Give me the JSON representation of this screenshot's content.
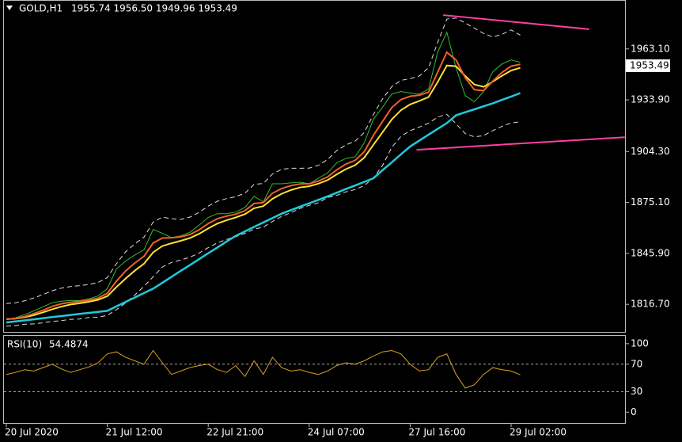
{
  "chart_data": [
    {
      "type": "line",
      "title": "GOLD,H1",
      "subtitle": "1955.74 1956.50 1949.96 1953.49",
      "categories": [
        "20 Jul 2020",
        null,
        null,
        null,
        null,
        null,
        null,
        null,
        null,
        null,
        null,
        "21 Jul 12:00",
        null,
        null,
        null,
        null,
        null,
        null,
        null,
        null,
        null,
        null,
        "22 Jul 21:00",
        null,
        null,
        null,
        null,
        null,
        null,
        null,
        null,
        null,
        null,
        "24 Jul 07:00",
        null,
        null,
        null,
        null,
        null,
        null,
        null,
        null,
        null,
        null,
        "27 Jul 16:00",
        null,
        null,
        null,
        null,
        null,
        null,
        null,
        null,
        null,
        null,
        "29 Jul 02:00",
        null
      ],
      "series": [
        {
          "color": "#2fbf2f",
          "width": 1,
          "values": [
            1808.2,
            1809.0,
            1810.8,
            1813.0,
            1815.3,
            1817.6,
            1818.5,
            1818.9,
            1818.9,
            1819.8,
            1821.5,
            1825.7,
            1837.0,
            1841.5,
            1845.0,
            1848.0,
            1859.6,
            1857.4,
            1855.0,
            1856.0,
            1858.0,
            1862.0,
            1866.5,
            1868.7,
            1868.7,
            1869.6,
            1872.3,
            1878.6,
            1875.4,
            1885.8,
            1885.8,
            1886.3,
            1886.7,
            1885.8,
            1889.0,
            1892.0,
            1897.9,
            1900.3,
            1901.2,
            1909.3,
            1922.9,
            1929.7,
            1937.3,
            1938.7,
            1937.8,
            1937.3,
            1940.0,
            1961.3,
            1972.6,
            1952.3,
            1936.4,
            1932.8,
            1938.7,
            1950.0,
            1954.5,
            1956.8,
            1955.4
          ]
        },
        {
          "color": "#dddddd",
          "width": 1,
          "dashed": true,
          "values": [
            1817.2,
            1817.6,
            1818.7,
            1820.4,
            1822.3,
            1824.5,
            1826.0,
            1826.9,
            1827.4,
            1828.1,
            1829.3,
            1832.0,
            1840.0,
            1846.8,
            1851.4,
            1855.2,
            1863.9,
            1866.7,
            1865.8,
            1865.4,
            1866.7,
            1869.4,
            1873.0,
            1875.8,
            1877.3,
            1878.4,
            1880.4,
            1885.5,
            1886.0,
            1891.4,
            1894.1,
            1894.7,
            1894.7,
            1894.8,
            1896.4,
            1899.7,
            1904.8,
            1908.1,
            1910.2,
            1915.2,
            1925.6,
            1934.6,
            1941.5,
            1945.1,
            1946.0,
            1947.6,
            1952.3,
            1966.8,
            1980.2,
            1980.8,
            1978.0,
            1975.0,
            1972.0,
            1970.0,
            1971.5,
            1974.0,
            1971.0
          ]
        },
        {
          "color": "#dddddd",
          "width": 1,
          "dashed": true,
          "values": [
            1804.2,
            1804.5,
            1805.3,
            1805.5,
            1806.1,
            1806.9,
            1807.4,
            1808.1,
            1808.3,
            1809.2,
            1809.3,
            1810.4,
            1813.6,
            1817.5,
            1822.0,
            1827.0,
            1832.5,
            1838.1,
            1840.7,
            1842.1,
            1843.7,
            1846.1,
            1849.2,
            1852.0,
            1853.9,
            1855.5,
            1857.4,
            1859.8,
            1861.0,
            1864.2,
            1867.1,
            1869.2,
            1871.7,
            1873.4,
            1874.9,
            1877.9,
            1879.2,
            1881.2,
            1882.5,
            1884.8,
            1889.2,
            1896.4,
            1906.7,
            1913.0,
            1916.3,
            1918.3,
            1920.5,
            1924.1,
            1925.6,
            1920.2,
            1914.6,
            1912.7,
            1913.4,
            1916.3,
            1918.7,
            1920.7,
            1921.3
          ]
        },
        {
          "color": "#22c8dc",
          "width": 2.5,
          "values": [
            1806.3,
            1806.9,
            1807.5,
            1808.1,
            1808.7,
            1809.4,
            1810.0,
            1810.6,
            1811.2,
            1811.8,
            1812.4,
            1813.0,
            1815.5,
            1818.1,
            1820.6,
            1823.2,
            1825.7,
            1829.1,
            1832.5,
            1835.9,
            1839.2,
            1842.6,
            1846.0,
            1849.3,
            1852.7,
            1856.0,
            1858.5,
            1861.1,
            1863.6,
            1866.2,
            1868.7,
            1870.7,
            1872.7,
            1874.6,
            1876.6,
            1878.6,
            1880.7,
            1882.8,
            1884.8,
            1886.9,
            1889.0,
            1893.6,
            1898.1,
            1902.7,
            1907.2,
            1910.6,
            1913.9,
            1917.3,
            1920.6,
            1925.1,
            1926.8,
            1928.5,
            1930.2,
            1931.9,
            1933.9,
            1935.8,
            1937.8
          ]
        },
        {
          "color": "#ffe030",
          "width": 2,
          "values": [
            1808.2,
            1808.5,
            1809.3,
            1810.5,
            1812.1,
            1813.9,
            1815.4,
            1816.6,
            1817.3,
            1818.2,
            1819.3,
            1821.4,
            1826.6,
            1831.5,
            1836.0,
            1840.0,
            1846.5,
            1850.1,
            1851.7,
            1853.1,
            1854.7,
            1857.1,
            1860.2,
            1863.0,
            1864.9,
            1866.5,
            1868.4,
            1871.8,
            1873.0,
            1877.2,
            1880.1,
            1882.2,
            1883.7,
            1884.4,
            1885.9,
            1887.9,
            1891.2,
            1894.2,
            1896.5,
            1900.8,
            1908.2,
            1915.4,
            1922.7,
            1928.0,
            1931.3,
            1933.3,
            1935.5,
            1944.1,
            1953.6,
            1953.2,
            1947.6,
            1942.7,
            1941.4,
            1944.3,
            1947.7,
            1950.7,
            1952.3
          ]
        },
        {
          "color": "#f0602a",
          "width": 2,
          "values": [
            1808.2,
            1808.6,
            1809.7,
            1811.4,
            1813.3,
            1815.5,
            1817.0,
            1817.9,
            1818.4,
            1819.1,
            1820.3,
            1823.0,
            1830.0,
            1835.8,
            1840.4,
            1844.2,
            1851.9,
            1854.7,
            1854.8,
            1855.4,
            1856.7,
            1859.4,
            1863.0,
            1865.8,
            1867.3,
            1868.4,
            1870.4,
            1874.5,
            1875.0,
            1880.4,
            1883.1,
            1884.7,
            1885.7,
            1885.8,
            1887.4,
            1889.7,
            1893.8,
            1897.1,
            1899.2,
            1904.2,
            1913.6,
            1921.6,
            1929.5,
            1934.1,
            1936.0,
            1936.6,
            1938.3,
            1949.8,
            1961.2,
            1956.8,
            1946.6,
            1939.7,
            1939.2,
            1944.6,
            1949.6,
            1953.2,
            1954.3
          ]
        }
      ],
      "trendlines": [
        {
          "color": "#ff3fa4",
          "x": [
            47.6,
            63.5
          ],
          "values": [
            1982.5,
            1974.4
          ]
        },
        {
          "color": "#ff3fa4",
          "x": [
            44.7,
            67.4
          ],
          "values": [
            1905.3,
            1912.5
          ]
        }
      ],
      "last_price": 1953.49,
      "ylim": [
        1800.9,
        1990.7
      ],
      "yticks": [
        {
          "value": 1963.1,
          "label": "1963.10"
        },
        {
          "value": 1933.9,
          "label": "1933.90"
        },
        {
          "value": 1904.3,
          "label": "1904.30"
        },
        {
          "value": 1875.1,
          "label": "1875.10"
        },
        {
          "value": 1845.9,
          "label": "1845.90"
        },
        {
          "value": 1816.7,
          "label": "1816.70"
        }
      ]
    },
    {
      "type": "line",
      "title": "RSI(10)",
      "current": 54.4874,
      "color": "#d9a020",
      "values": [
        55,
        58,
        62,
        60,
        65,
        70,
        63,
        58,
        62,
        66,
        72,
        85,
        88,
        80,
        75,
        70,
        90,
        72,
        55,
        60,
        65,
        68,
        70,
        62,
        58,
        68,
        52,
        75,
        55,
        80,
        65,
        60,
        62,
        58,
        55,
        60,
        68,
        72,
        70,
        75,
        82,
        88,
        90,
        85,
        70,
        60,
        62,
        80,
        85,
        55,
        35,
        40,
        55,
        65,
        62,
        60,
        54.4874
      ],
      "levels": [
        70,
        30
      ],
      "ylim": [
        -15.9,
        111.4
      ],
      "yticks": [
        100,
        70,
        30,
        0
      ]
    }
  ]
}
